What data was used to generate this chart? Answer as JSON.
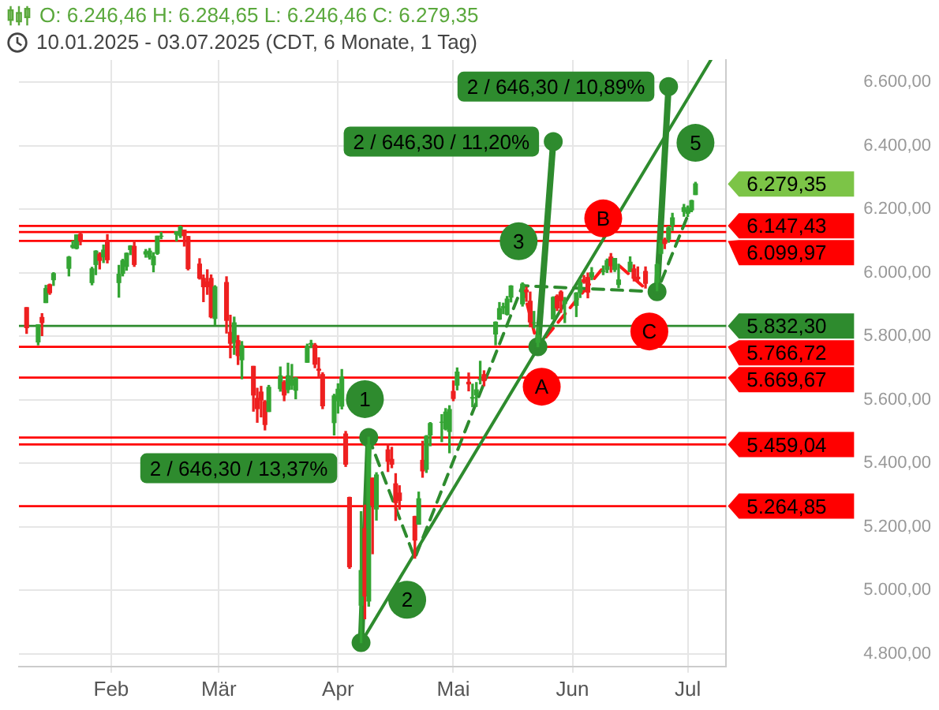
{
  "chart_data": {
    "type": "candlestick",
    "title": "O: 6.246,46  H: 6.284,65  L: 6.246,46  C: 6.279,35",
    "subtitle": "10.01.2025 - 03.07.2025  (CDT, 6 Monate, 1 Tag)",
    "x": [
      "2025-01-10",
      "2025-01-13",
      "2025-01-14",
      "2025-01-15",
      "2025-01-16",
      "2025-01-17",
      "2025-01-21",
      "2025-01-22",
      "2025-01-23",
      "2025-01-24",
      "2025-01-27",
      "2025-01-28",
      "2025-01-29",
      "2025-01-30",
      "2025-01-31",
      "2025-02-03",
      "2025-02-04",
      "2025-02-05",
      "2025-02-06",
      "2025-02-07",
      "2025-02-10",
      "2025-02-11",
      "2025-02-12",
      "2025-02-13",
      "2025-02-14",
      "2025-02-18",
      "2025-02-19",
      "2025-02-20",
      "2025-02-21",
      "2025-02-24",
      "2025-02-25",
      "2025-02-26",
      "2025-02-27",
      "2025-02-28",
      "2025-03-03",
      "2025-03-04",
      "2025-03-05",
      "2025-03-06",
      "2025-03-07",
      "2025-03-10",
      "2025-03-11",
      "2025-03-12",
      "2025-03-13",
      "2025-03-14",
      "2025-03-17",
      "2025-03-18",
      "2025-03-19",
      "2025-03-20",
      "2025-03-21",
      "2025-03-24",
      "2025-03-25",
      "2025-03-26",
      "2025-03-27",
      "2025-03-28",
      "2025-03-31",
      "2025-04-01",
      "2025-04-02",
      "2025-04-03",
      "2025-04-04",
      "2025-04-07",
      "2025-04-08",
      "2025-04-09",
      "2025-04-10",
      "2025-04-11",
      "2025-04-14",
      "2025-04-15",
      "2025-04-16",
      "2025-04-17",
      "2025-04-21",
      "2025-04-22",
      "2025-04-23",
      "2025-04-24",
      "2025-04-25",
      "2025-04-28",
      "2025-04-29",
      "2025-04-30",
      "2025-05-01",
      "2025-05-02",
      "2025-05-05",
      "2025-05-06",
      "2025-05-07",
      "2025-05-08",
      "2025-05-09",
      "2025-05-12",
      "2025-05-13",
      "2025-05-14",
      "2025-05-15",
      "2025-05-16",
      "2025-05-19",
      "2025-05-20",
      "2025-05-21",
      "2025-05-22",
      "2025-05-23",
      "2025-05-27",
      "2025-05-28",
      "2025-05-29",
      "2025-05-30",
      "2025-06-02",
      "2025-06-03",
      "2025-06-04",
      "2025-06-05",
      "2025-06-06",
      "2025-06-09",
      "2025-06-10",
      "2025-06-11",
      "2025-06-12",
      "2025-06-13",
      "2025-06-16",
      "2025-06-17",
      "2025-06-18",
      "2025-06-20",
      "2025-06-23",
      "2025-06-24",
      "2025-06-25",
      "2025-06-26",
      "2025-06-27",
      "2025-06-30",
      "2025-07-01",
      "2025-07-02",
      "2025-07-03"
    ],
    "ohlc": [
      [
        5890,
        5890,
        5809,
        5827
      ],
      [
        5782,
        5836,
        5773,
        5836
      ],
      [
        5859,
        5871,
        5802,
        5843
      ],
      [
        5906,
        5960,
        5906,
        5950
      ],
      [
        5962,
        5964,
        5932,
        5937
      ],
      [
        5978,
        6000,
        5960,
        5997
      ],
      [
        6014,
        6051,
        5990,
        6049
      ],
      [
        6081,
        6100,
        6077,
        6086
      ],
      [
        6077,
        6119,
        6075,
        6119
      ],
      [
        6121,
        6128,
        6088,
        6101
      ],
      [
        5969,
        6017,
        5962,
        6012
      ],
      [
        6026,
        6069,
        5994,
        6068
      ],
      [
        6058,
        6063,
        6012,
        6039
      ],
      [
        6050,
        6087,
        6032,
        6071
      ],
      [
        6096,
        6120,
        6031,
        6041
      ],
      [
        5969,
        6023,
        5923,
        5995
      ],
      [
        5998,
        6042,
        5990,
        6038
      ],
      [
        6020,
        6062,
        6008,
        6061
      ],
      [
        6073,
        6085,
        6057,
        6084
      ],
      [
        6083,
        6101,
        6020,
        6026
      ],
      [
        6059,
        6073,
        6049,
        6066
      ],
      [
        6049,
        6076,
        6043,
        6068
      ],
      [
        6025,
        6063,
        6003,
        6051
      ],
      [
        6061,
        6115,
        6058,
        6115
      ],
      [
        6115,
        6127,
        6107,
        6115
      ],
      [
        6121,
        6129,
        6100,
        6129
      ],
      [
        6117,
        6147,
        6111,
        6144
      ],
      [
        6134,
        6134,
        6084,
        6117
      ],
      [
        6114,
        6114,
        6009,
        6013
      ],
      [
        6027,
        6044,
        5980,
        5983
      ],
      [
        5982,
        5993,
        5909,
        5956
      ],
      [
        5971,
        6009,
        5932,
        5956
      ],
      [
        5982,
        5993,
        5858,
        5861
      ],
      [
        5856,
        5959,
        5837,
        5955
      ],
      [
        5969,
        5987,
        5810,
        5850
      ],
      [
        5812,
        5866,
        5732,
        5778
      ],
      [
        5781,
        5860,
        5743,
        5842
      ],
      [
        5786,
        5802,
        5711,
        5739
      ],
      [
        5726,
        5783,
        5666,
        5770
      ],
      [
        5705,
        5705,
        5564,
        5615
      ],
      [
        5604,
        5636,
        5529,
        5572
      ],
      [
        5624,
        5642,
        5546,
        5599
      ],
      [
        5594,
        5597,
        5505,
        5522
      ],
      [
        5563,
        5645,
        5563,
        5639
      ],
      [
        5635,
        5703,
        5627,
        5675
      ],
      [
        5655,
        5660,
        5597,
        5615
      ],
      [
        5632,
        5715,
        5622,
        5675
      ],
      [
        5646,
        5711,
        5633,
        5663
      ],
      [
        5630,
        5670,
        5603,
        5668
      ],
      [
        5718,
        5775,
        5718,
        5768
      ],
      [
        5775,
        5787,
        5764,
        5777
      ],
      [
        5772,
        5777,
        5701,
        5712
      ],
      [
        5696,
        5732,
        5670,
        5693
      ],
      [
        5679,
        5685,
        5572,
        5581
      ],
      [
        5528,
        5617,
        5489,
        5612
      ],
      [
        5597,
        5650,
        5558,
        5633
      ],
      [
        5580,
        5695,
        5571,
        5671
      ],
      [
        5492,
        5500,
        5390,
        5397
      ],
      [
        5292,
        5293,
        5069,
        5074
      ],
      [
        4953,
        5247,
        4835,
        5062
      ],
      [
        5194,
        5268,
        4910,
        4982
      ],
      [
        4966,
        5482,
        4950,
        5457
      ],
      [
        5353,
        5353,
        5115,
        5268
      ],
      [
        5256,
        5370,
        5221,
        5363
      ],
      [
        5442,
        5460,
        5374,
        5406
      ],
      [
        5412,
        5450,
        5386,
        5397
      ],
      [
        5335,
        5367,
        5220,
        5276
      ],
      [
        5306,
        5329,
        5255,
        5283
      ],
      [
        5232,
        5233,
        5101,
        5158
      ],
      [
        5208,
        5309,
        5208,
        5288
      ],
      [
        5409,
        5469,
        5356,
        5376
      ],
      [
        5381,
        5487,
        5371,
        5485
      ],
      [
        5489,
        5528,
        5455,
        5525
      ],
      [
        5529,
        5553,
        5468,
        5529
      ],
      [
        5508,
        5572,
        5505,
        5561
      ],
      [
        5500,
        5581,
        5433,
        5569
      ],
      [
        5626,
        5659,
        5597,
        5604
      ],
      [
        5646,
        5700,
        5631,
        5687
      ],
      [
        5655,
        5684,
        5628,
        5650
      ],
      [
        5605,
        5649,
        5578,
        5607
      ],
      [
        5615,
        5654,
        5579,
        5631
      ],
      [
        5663,
        5721,
        5650,
        5664
      ],
      [
        5679,
        5691,
        5644,
        5660
      ],
      [
        5807,
        5845,
        5773,
        5844
      ],
      [
        5854,
        5906,
        5853,
        5887
      ],
      [
        5890,
        5904,
        5871,
        5893
      ],
      [
        5869,
        5925,
        5867,
        5917
      ],
      [
        5923,
        5959,
        5908,
        5958
      ],
      [
        5902,
        5968,
        5895,
        5964
      ],
      [
        5945,
        5954,
        5910,
        5940
      ],
      [
        5910,
        5939,
        5830,
        5845
      ],
      [
        5842,
        5878,
        5826,
        5842
      ],
      [
        5781,
        5829,
        5767,
        5803
      ],
      [
        5855,
        5924,
        5854,
        5922
      ],
      [
        5926,
        5930,
        5881,
        5889
      ],
      [
        5939,
        5943,
        5875,
        5912
      ],
      [
        5903,
        5922,
        5843,
        5912
      ],
      [
        5897,
        5937,
        5862,
        5936
      ],
      [
        5938,
        5979,
        5922,
        5970
      ],
      [
        5978,
        5991,
        5967,
        5971
      ],
      [
        5985,
        5999,
        5921,
        5939
      ],
      [
        5987,
        6016,
        5978,
        6000
      ],
      [
        6004,
        6021,
        5994,
        6006
      ],
      [
        6010,
        6043,
        6001,
        6038
      ],
      [
        6049,
        6060,
        6002,
        6022
      ],
      [
        6010,
        6045,
        6004,
        6045
      ],
      [
        5963,
        6027,
        5953,
        5977
      ],
      [
        6004,
        6050,
        6004,
        6033
      ],
      [
        6012,
        6024,
        5974,
        5983
      ],
      [
        5986,
        6018,
        5971,
        5981
      ],
      [
        6004,
        6018,
        5952,
        5967
      ],
      [
        5970,
        6028,
        5943,
        6025
      ],
      [
        6061,
        6101,
        6059,
        6092
      ],
      [
        6104,
        6109,
        6076,
        6092
      ],
      [
        6106,
        6146,
        6096,
        6141
      ],
      [
        6150,
        6187,
        6133,
        6173
      ],
      [
        6193,
        6215,
        6178,
        6205
      ],
      [
        6187,
        6210,
        6177,
        6198
      ],
      [
        6198,
        6228,
        6192,
        6227
      ],
      [
        6246.46,
        6284.65,
        6246.46,
        6279.35
      ]
    ],
    "value_labels": [
      null,
      null,
      null,
      null,
      null,
      null,
      null,
      null,
      null,
      null,
      null,
      null,
      null,
      null,
      null,
      null,
      null,
      null,
      null,
      null,
      null,
      null,
      null,
      null,
      null,
      null,
      null,
      null,
      null,
      null,
      null,
      null,
      null,
      null,
      null,
      null,
      null,
      null,
      null,
      null,
      null,
      null,
      null,
      null,
      null,
      null,
      null,
      null,
      null,
      null,
      null,
      null,
      null,
      null,
      null,
      null,
      null,
      null,
      null,
      null,
      null,
      null,
      null,
      null,
      null,
      null,
      null,
      null,
      null,
      null,
      null,
      null,
      null,
      null,
      null,
      null,
      null,
      null,
      null,
      null,
      null,
      null,
      null,
      null,
      null,
      null,
      null,
      null,
      null,
      null,
      null,
      null,
      null,
      null,
      null,
      null,
      null,
      null,
      null,
      null,
      null,
      null,
      null,
      null,
      null,
      null,
      null,
      null,
      null,
      null,
      null,
      null,
      null,
      null,
      null,
      null,
      null,
      null,
      null,
      "6.279,35"
    ],
    "series": [
      {
        "type": "line",
        "color": "#2e8b2e",
        "line_style": "solid",
        "marker": "circle",
        "x": [
          "2025-04-07",
          "2025-04-09"
        ],
        "values": [
          4835,
          5481
        ]
      },
      {
        "type": "line",
        "color": "#2e8b2e",
        "line_style": "solid",
        "marker": "circle",
        "x": [
          "2025-05-23",
          "2025-05-27"
        ],
        "values": [
          5767,
          6413
        ]
      },
      {
        "type": "line",
        "color": "#2e8b2e",
        "line_style": "solid",
        "marker": "circle",
        "x": [
          "2025-06-23",
          "2025-06-26"
        ],
        "values": [
          5940,
          6586
        ]
      },
      {
        "type": "line",
        "color": "#2e8b2e",
        "line_style": "solid",
        "marker": "none",
        "x": [
          "2025-04-07",
          "2025-07-07"
        ],
        "values": [
          4835,
          6670
        ]
      },
      {
        "type": "line",
        "color": "#2e8b2e",
        "line_style": "dashed",
        "marker": "none",
        "x": [
          "2025-04-09",
          "2025-04-21",
          "2025-05-19",
          "2025-06-23",
          "2025-07-02"
        ],
        "values": [
          5481,
          5101,
          5959,
          5940,
          6210
        ]
      },
      {
        "type": "line",
        "color": "#ff1a1a",
        "line_style": "dashed",
        "marker": "none",
        "x": [
          "2025-05-19",
          "2025-05-23",
          "2025-06-11",
          "2025-06-20"
        ],
        "values": [
          5959,
          5767,
          6045,
          5950
        ]
      },
      {
        "type": "scatter",
        "name": "1",
        "color": "#2e8b2e",
        "marker": "circle",
        "x": [
          "2025-04-08"
        ],
        "values": [
          5602
        ]
      },
      {
        "type": "scatter",
        "name": "2",
        "color": "#2e8b2e",
        "marker": "circle",
        "x": [
          "2025-04-19"
        ],
        "values": [
          4970
        ]
      },
      {
        "type": "scatter",
        "name": "3",
        "color": "#2e8b2e",
        "marker": "circle",
        "x": [
          "2025-05-18"
        ],
        "values": [
          6099
        ]
      },
      {
        "type": "scatter",
        "name": "5",
        "color": "#2e8b2e",
        "marker": "circle",
        "x": [
          "2025-07-03"
        ],
        "values": [
          6409
        ]
      },
      {
        "type": "scatter",
        "name": "A",
        "color": "#ff0000",
        "marker": "circle",
        "x": [
          "2025-05-24"
        ],
        "values": [
          5641
        ]
      },
      {
        "type": "scatter",
        "name": "B",
        "color": "#ff0000",
        "marker": "circle",
        "x": [
          "2025-06-09"
        ],
        "values": [
          6171
        ]
      },
      {
        "type": "scatter",
        "name": "C",
        "color": "#ff0000",
        "marker": "circle",
        "x": [
          "2025-06-21"
        ],
        "values": [
          5815
        ]
      }
    ],
    "ref_lines": [
      {
        "axis": "y",
        "value": 6147.43,
        "label": "6.147,43",
        "color": "#ff0000"
      },
      {
        "axis": "y",
        "value": 6128,
        "label": null,
        "color": "#ff0000"
      },
      {
        "axis": "y",
        "value": 6099.97,
        "label": "6.099,97",
        "color": "#ff0000"
      },
      {
        "axis": "y",
        "value": 5832.3,
        "label": "5.832,30",
        "color": "#2e8b2e"
      },
      {
        "axis": "y",
        "value": 5766.72,
        "label": "5.766,72",
        "color": "#ff0000"
      },
      {
        "axis": "y",
        "value": 5669.67,
        "label": "5.669,67",
        "color": "#ff0000"
      },
      {
        "axis": "y",
        "value": 5481,
        "label": null,
        "color": "#ff0000"
      },
      {
        "axis": "y",
        "value": 5459.04,
        "label": "5.459,04",
        "color": "#ff0000"
      },
      {
        "axis": "y",
        "value": 5264.85,
        "label": "5.264,85",
        "color": "#ff0000"
      }
    ],
    "annotations": [
      {
        "text": "2 / 646,30 / 13,37%",
        "x": "2025-04-09",
        "y": 5481
      },
      {
        "text": "2 / 646,30 / 11,20%",
        "x": "2025-05-27",
        "y": 6413
      },
      {
        "text": "2 / 646,30 / 10,89%",
        "x": "2025-06-26",
        "y": 6586
      }
    ],
    "xlim": [
      "2025-01-08",
      "2025-07-11"
    ],
    "xticks": [
      {
        "value": "2025-02-01",
        "label": "Feb"
      },
      {
        "value": "2025-03-01",
        "label": "Mär"
      },
      {
        "value": "2025-04-01",
        "label": "Apr"
      },
      {
        "value": "2025-05-01",
        "label": "Mai"
      },
      {
        "value": "2025-06-01",
        "label": "Jun"
      },
      {
        "value": "2025-07-01",
        "label": "Jul"
      }
    ],
    "ylim": [
      4760,
      6670
    ],
    "yticks": [
      {
        "value": 4800,
        "label": "4.800,00"
      },
      {
        "value": 5000,
        "label": "5.000,00"
      },
      {
        "value": 5200,
        "label": "5.200,00"
      },
      {
        "value": 5400,
        "label": "5.400,00"
      },
      {
        "value": 5600,
        "label": "5.600,00"
      },
      {
        "value": 5800,
        "label": "5.800,00"
      },
      {
        "value": 6000,
        "label": "6.000,00"
      },
      {
        "value": 6200,
        "label": "6.200,00"
      },
      {
        "value": 6400,
        "label": "6.400,00"
      },
      {
        "value": 6600,
        "label": "6.600,00"
      }
    ],
    "grid": true,
    "legend": false
  }
}
